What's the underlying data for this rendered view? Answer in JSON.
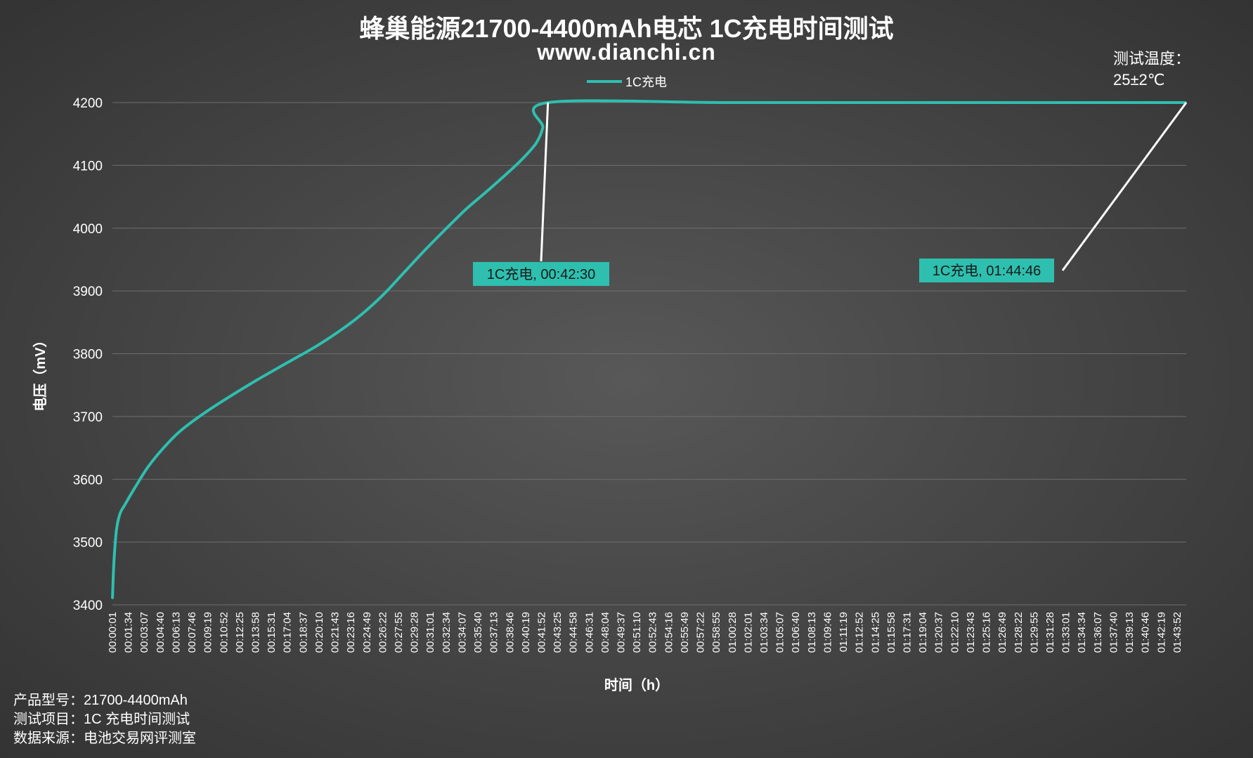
{
  "chart_data": {
    "type": "line",
    "title": "蜂巢能源21700-4400mAh电芯 1C充电时间测试",
    "subtitle": "www.dianchi.cn",
    "xlabel": "时间（h）",
    "ylabel": "电压（mV）",
    "ylim": [
      3400,
      4200
    ],
    "yticks": [
      3400,
      3500,
      3600,
      3700,
      3800,
      3900,
      4000,
      4100,
      4200
    ],
    "grid": true,
    "legend_position": "top-center",
    "x_tick_labels": [
      "00:00:01",
      "00:01:34",
      "00:03:07",
      "00:04:40",
      "00:06:13",
      "00:07:46",
      "00:09:19",
      "00:10:52",
      "00:12:25",
      "00:13:58",
      "00:15:31",
      "00:17:04",
      "00:18:37",
      "00:20:10",
      "00:21:43",
      "00:23:16",
      "00:24:49",
      "00:26:22",
      "00:27:55",
      "00:29:28",
      "00:31:01",
      "00:32:34",
      "00:34:07",
      "00:35:40",
      "00:37:13",
      "00:38:46",
      "00:40:19",
      "00:41:52",
      "00:43:25",
      "00:44:58",
      "00:46:31",
      "00:48:04",
      "00:49:37",
      "00:51:10",
      "00:52:43",
      "00:54:16",
      "00:55:49",
      "00:57:22",
      "00:58:55",
      "01:00:28",
      "01:02:01",
      "01:03:34",
      "01:05:07",
      "01:06:40",
      "01:08:13",
      "01:09:46",
      "01:11:19",
      "01:12:52",
      "01:14:25",
      "01:15:58",
      "01:17:31",
      "01:19:04",
      "01:20:37",
      "01:22:10",
      "01:23:43",
      "01:25:16",
      "01:26:49",
      "01:28:22",
      "01:29:55",
      "01:31:28",
      "01:33:01",
      "01:34:34",
      "01:36:07",
      "01:37:40",
      "01:39:13",
      "01:40:46",
      "01:42:19",
      "01:43:52"
    ],
    "series": [
      {
        "name": "1C充电",
        "color": "#2ebfaf",
        "points": [
          [
            "00:00:01",
            3410
          ],
          [
            "00:00:10",
            3470
          ],
          [
            "00:00:25",
            3520
          ],
          [
            "00:00:45",
            3545
          ],
          [
            "00:01:15",
            3560
          ],
          [
            "00:02:20",
            3590
          ],
          [
            "00:03:30",
            3620
          ],
          [
            "00:05:00",
            3650
          ],
          [
            "00:06:30",
            3675
          ],
          [
            "00:08:30",
            3700
          ],
          [
            "00:11:00",
            3727
          ],
          [
            "00:14:00",
            3757
          ],
          [
            "00:17:00",
            3785
          ],
          [
            "00:20:00",
            3813
          ],
          [
            "00:22:30",
            3840
          ],
          [
            "00:24:30",
            3865
          ],
          [
            "00:26:30",
            3895
          ],
          [
            "00:28:30",
            3930
          ],
          [
            "00:30:30",
            3965
          ],
          [
            "00:32:30",
            3998
          ],
          [
            "00:34:30",
            4030
          ],
          [
            "00:36:30",
            4058
          ],
          [
            "00:38:30",
            4087
          ],
          [
            "00:40:00",
            4110
          ],
          [
            "00:41:20",
            4135
          ],
          [
            "00:42:00",
            4160
          ],
          [
            "00:42:30",
            4200
          ],
          [
            "01:00:00",
            4200
          ],
          [
            "01:20:00",
            4200
          ],
          [
            "01:44:46",
            4200
          ]
        ]
      }
    ],
    "annotations": [
      {
        "label": "1C充电, 00:42:30",
        "x": "00:42:30",
        "y": 4200
      },
      {
        "label": "1C充电, 01:44:46",
        "x": "01:44:46",
        "y": 4200
      }
    ]
  },
  "temperature_note": {
    "line1": "测试温度：",
    "line2": "25±2℃"
  },
  "info": {
    "model": "产品型号：21700-4400mAh",
    "test_item": "测试项目：1C 充电时间测试",
    "source": "数据来源：电池交易网评测室"
  }
}
